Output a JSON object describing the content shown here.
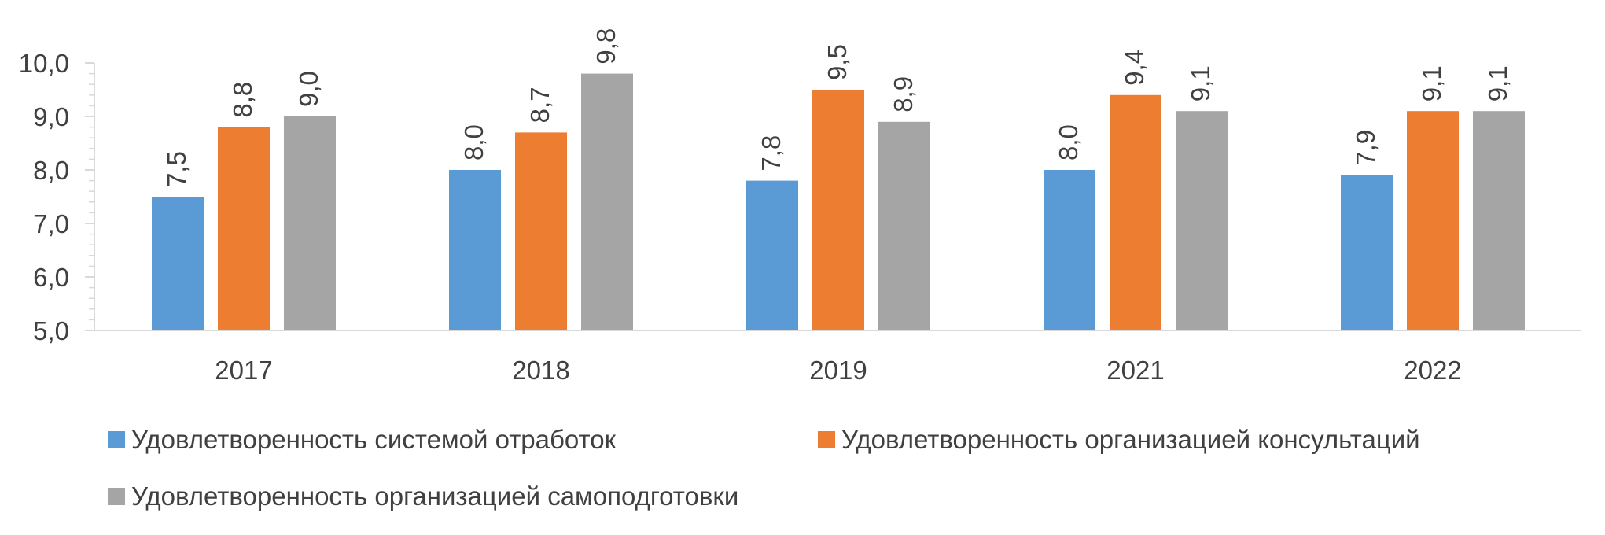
{
  "chart_data": {
    "type": "bar",
    "categories": [
      "2017",
      "2018",
      "2019",
      "2021",
      "2022"
    ],
    "series": [
      {
        "name": "Удовлетворенность системой отработок",
        "values": [
          7.5,
          8.0,
          7.8,
          8.0,
          7.9
        ],
        "labels": [
          "7,5",
          "8,0",
          "7,8",
          "8,0",
          "7,9"
        ],
        "color": "#5B9BD5"
      },
      {
        "name": "Удовлетворенность организацией консультаций",
        "values": [
          8.8,
          8.7,
          9.5,
          9.4,
          9.1
        ],
        "labels": [
          "8,8",
          "8,7",
          "9,5",
          "9,4",
          "9,1"
        ],
        "color": "#ED7D31"
      },
      {
        "name": "Удовлетворенность организацией самоподготовки",
        "values": [
          9.0,
          9.8,
          8.9,
          9.1,
          9.1
        ],
        "labels": [
          "9,0",
          "9,8",
          "8,9",
          "9,1",
          "9,1"
        ],
        "color": "#A5A5A5"
      }
    ],
    "ylim": [
      5.0,
      10.0
    ],
    "yticks": [
      5.0,
      6.0,
      7.0,
      8.0,
      9.0,
      10.0
    ],
    "ytick_labels": [
      "5,0",
      "6,0",
      "7,0",
      "8,0",
      "9,0",
      "10,0"
    ],
    "grid": false,
    "legend": "bottom",
    "data_label_rotation": "vertical"
  }
}
